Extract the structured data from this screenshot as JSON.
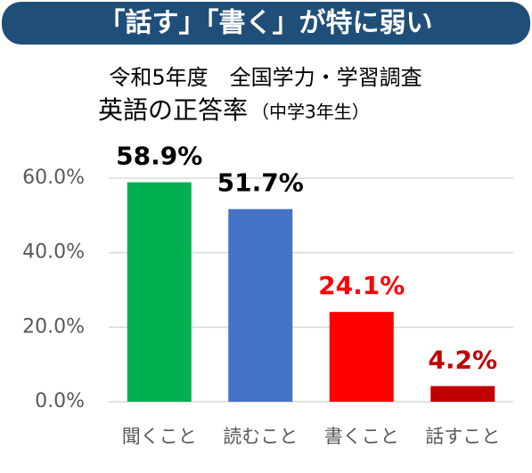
{
  "chart_data": {
    "type": "bar",
    "headline": "「話す」「書く」が特に弱い",
    "title": "令和5年度　全国学力・学習調査",
    "subtitle": "英語の正答率",
    "subtitle_note": "（中学3年生）",
    "categories": [
      "聞くこと",
      "読むこと",
      "書くこと",
      "話すこと"
    ],
    "values": [
      58.9,
      51.7,
      24.1,
      4.2
    ],
    "value_labels": [
      "58.9%",
      "51.7%",
      "24.1%",
      "4.2%"
    ],
    "colors": [
      "#00b050",
      "#4472c4",
      "#ff0000",
      "#c00000"
    ],
    "label_colors": [
      "#000000",
      "#000000",
      "#ff0000",
      "#c00000"
    ],
    "ylim": [
      0,
      60
    ],
    "yticks": [
      {
        "value": 0,
        "label": "0.0%"
      },
      {
        "value": 20,
        "label": "20.0%"
      },
      {
        "value": 40,
        "label": "40.0%"
      },
      {
        "value": 60,
        "label": "60.0%"
      }
    ],
    "grid": true
  }
}
